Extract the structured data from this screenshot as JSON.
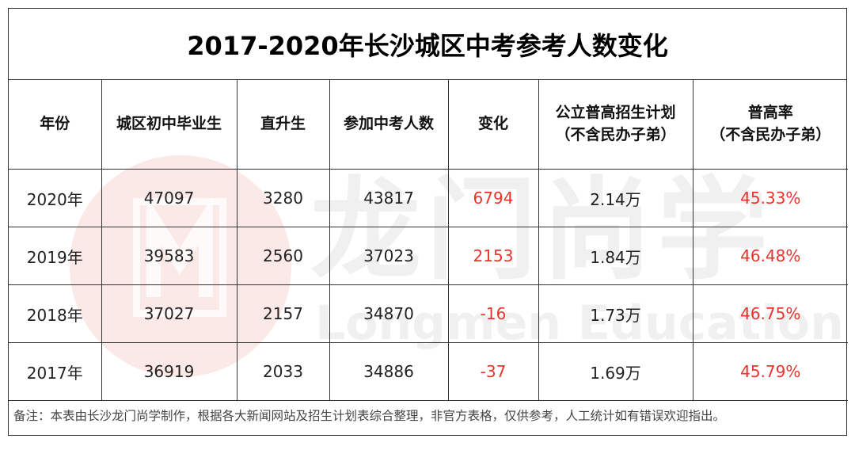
{
  "title": "2017-2020年长沙城区中考参考人数变化",
  "headers": [
    {
      "line1": "年份",
      "line2": ""
    },
    {
      "line1": "城区初中毕业生",
      "line2": ""
    },
    {
      "line1": "直升生",
      "line2": ""
    },
    {
      "line1": "参加中考人数",
      "line2": ""
    },
    {
      "line1": "变化",
      "line2": ""
    },
    {
      "line1": "公立普高招生计划",
      "line2": "（不含民办子弟）"
    },
    {
      "line1": "普高率",
      "line2": "（不含民办子弟）"
    }
  ],
  "rows": [
    {
      "year": "2020年",
      "graduates": "47097",
      "direct": "3280",
      "exam_takers": "43817",
      "change": "6794",
      "plan": "2.14万",
      "rate": "45.33%"
    },
    {
      "year": "2019年",
      "graduates": "39583",
      "direct": "2560",
      "exam_takers": "37023",
      "change": "2153",
      "plan": "1.84万",
      "rate": "46.48%"
    },
    {
      "year": "2018年",
      "graduates": "37027",
      "direct": "2157",
      "exam_takers": "34870",
      "change": "-16",
      "plan": "1.73万",
      "rate": "46.75%"
    },
    {
      "year": "2017年",
      "graduates": "36919",
      "direct": "2033",
      "exam_takers": "34886",
      "change": "-37",
      "plan": "1.69万",
      "rate": "45.79%"
    }
  ],
  "note": "备注：本表由长沙龙门尚学制作，根据各大新闻网站及招生计划表综合整理，非官方表格，仅供参考，人工统计如有错误欢迎指出。",
  "watermark": {
    "chinese": "龙门尚学",
    "english": "Longmen Education"
  },
  "colors": {
    "highlight": "#e8342c",
    "border": "#333333",
    "watermark_red": "#e1463c"
  }
}
